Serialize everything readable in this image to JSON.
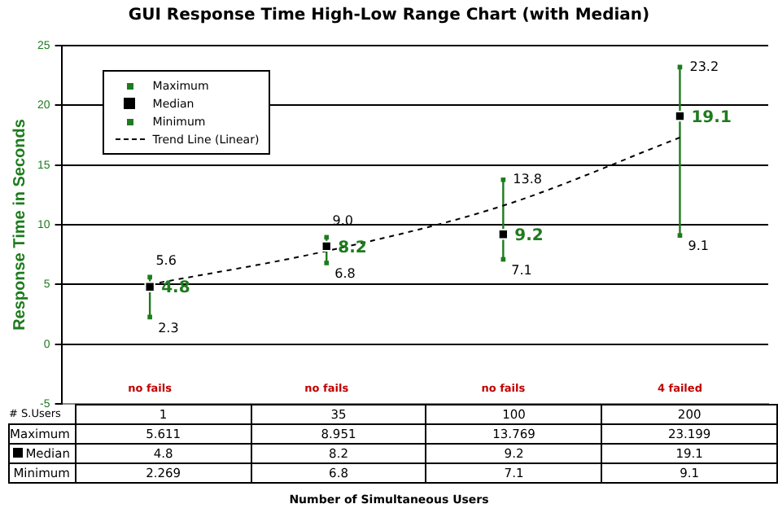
{
  "chart_data": {
    "type": "scatter",
    "title": "GUI Response Time High-Low Range Chart (with Median)",
    "ylabel": "Response Time in Seconds",
    "categories": [
      "1",
      "35",
      "100",
      "200"
    ],
    "ylim": [
      -5,
      25
    ],
    "yticks": [
      -5,
      0,
      5,
      10,
      15,
      20,
      25
    ],
    "grid": "y",
    "legend": "top left",
    "series": [
      {
        "name": "Maximum",
        "type": "scatter",
        "marker": "square",
        "color": "#1e7b1e",
        "values": [
          5.611,
          8.951,
          13.769,
          23.199
        ],
        "value_labels": [
          "5.6",
          "9.0",
          "13.8",
          "23.2"
        ]
      },
      {
        "name": "Median",
        "type": "scatter",
        "marker": "square",
        "color": "#000000",
        "values": [
          4.8,
          8.2,
          9.2,
          19.1
        ],
        "value_labels": [
          "4.8",
          "8.2",
          "9.2",
          "19.1"
        ]
      },
      {
        "name": "Minimum",
        "type": "scatter",
        "marker": "square",
        "color": "#1e7b1e",
        "values": [
          2.269,
          6.8,
          7.1,
          9.1
        ],
        "value_labels": [
          "2.3",
          "6.8",
          "7.1",
          "9.1"
        ]
      },
      {
        "name": "Trend Line (Linear)",
        "type": "line",
        "line_style": "dashed",
        "marker": "none",
        "color": "#000000",
        "values": [
          5.0,
          7.8,
          11.6,
          17.3
        ]
      }
    ],
    "annotations": [
      "# S.Users",
      "no fails",
      "no fails",
      "no fails",
      "4 failed",
      "Maximum",
      "5.611",
      "8.951",
      "13.769",
      "23.199",
      "Median",
      "4.8",
      "8.2",
      "9.2",
      "19.1",
      "Minimum",
      "2.269",
      "6.8",
      "7.1",
      "9.1",
      "Number of Simultaneous Users"
    ]
  }
}
